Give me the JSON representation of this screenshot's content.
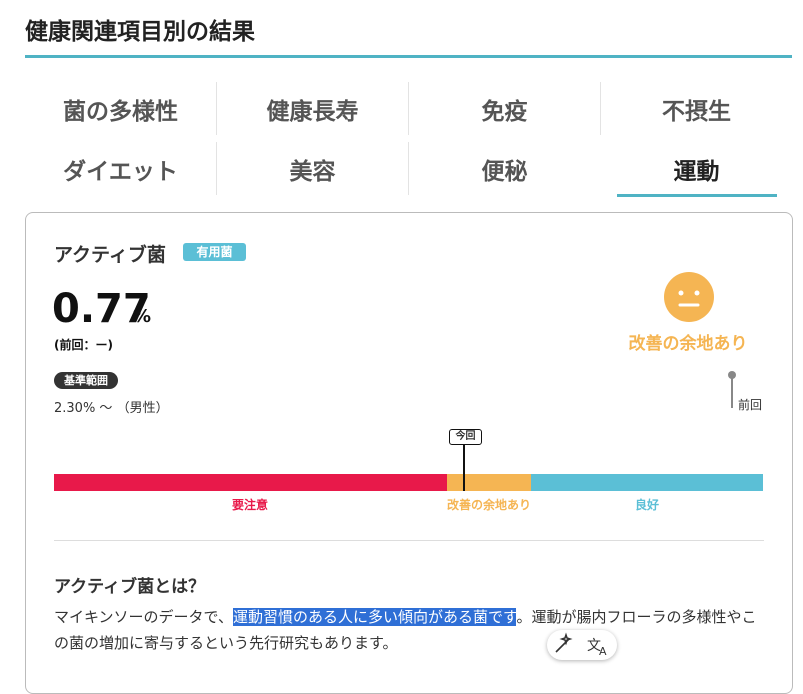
{
  "header": {
    "title": "健康関連項目別の結果"
  },
  "tabs": [
    "菌の多様性",
    "健康長寿",
    "免疫",
    "不摂生",
    "ダイエット",
    "美容",
    "便秘",
    "運動"
  ],
  "active_tab": 7,
  "card": {
    "name": "アクティブ菌",
    "badge": "有用菌",
    "value": "0.77",
    "unit": "%",
    "previous": "(前回：ー)",
    "status": "改善の余地あり",
    "range_badge": "基準範囲",
    "range": "2.30% ～ （男性）",
    "previous_marker": "前回",
    "current_marker": "今回",
    "scale_labels": [
      "要注意",
      "改善の余地あり",
      "良好"
    ],
    "about_title": "アクティブ菌とは？",
    "about_text": [
      "マイキンソーのデータで、",
      "運動習慣のある人に多い傾向がある菌です",
      "。運動が腸内フローラの多様性やこの菌の増加に寄与するという先行研究もあります。"
    ]
  }
}
